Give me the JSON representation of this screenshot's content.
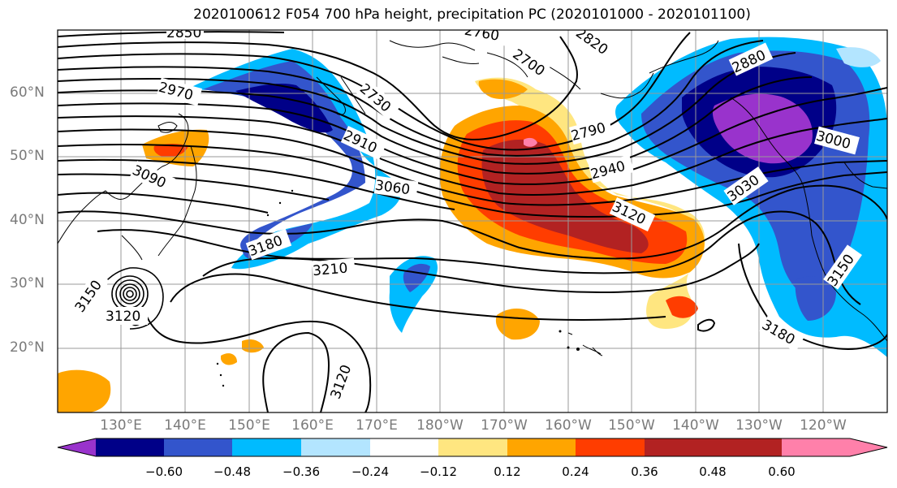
{
  "title": "2020100612 F054 700 hPa height, precipitation PC (2020101000 - 2020101100)",
  "lat_labels": [
    "60°N",
    "50°N",
    "40°N",
    "30°N",
    "20°N"
  ],
  "lon_labels": [
    "130°E",
    "140°E",
    "150°E",
    "160°E",
    "170°E",
    "180°W",
    "170°W",
    "160°W",
    "150°W",
    "140°W",
    "130°W",
    "120°W"
  ],
  "colorbar": {
    "ticks": [
      "−0.60",
      "−0.48",
      "−0.36",
      "−0.24",
      "−0.12",
      "0.12",
      "0.24",
      "0.36",
      "0.48",
      "0.60"
    ],
    "colors": [
      "#9933cc",
      "#000088",
      "#3355cc",
      "#00bbff",
      "#b3e5ff",
      "#ffffff",
      "#ffe680",
      "#ffa500",
      "#ff3d00",
      "#b22222",
      "#ff80aa"
    ]
  },
  "contour_labels": [
    "2850",
    "2760",
    "2820",
    "2700",
    "2880",
    "2970",
    "2730",
    "2910",
    "2790",
    "3000",
    "3090",
    "3060",
    "2940",
    "3030",
    "3120",
    "3180",
    "3210",
    "3150",
    "3150",
    "3120",
    "3120",
    "3180"
  ]
}
